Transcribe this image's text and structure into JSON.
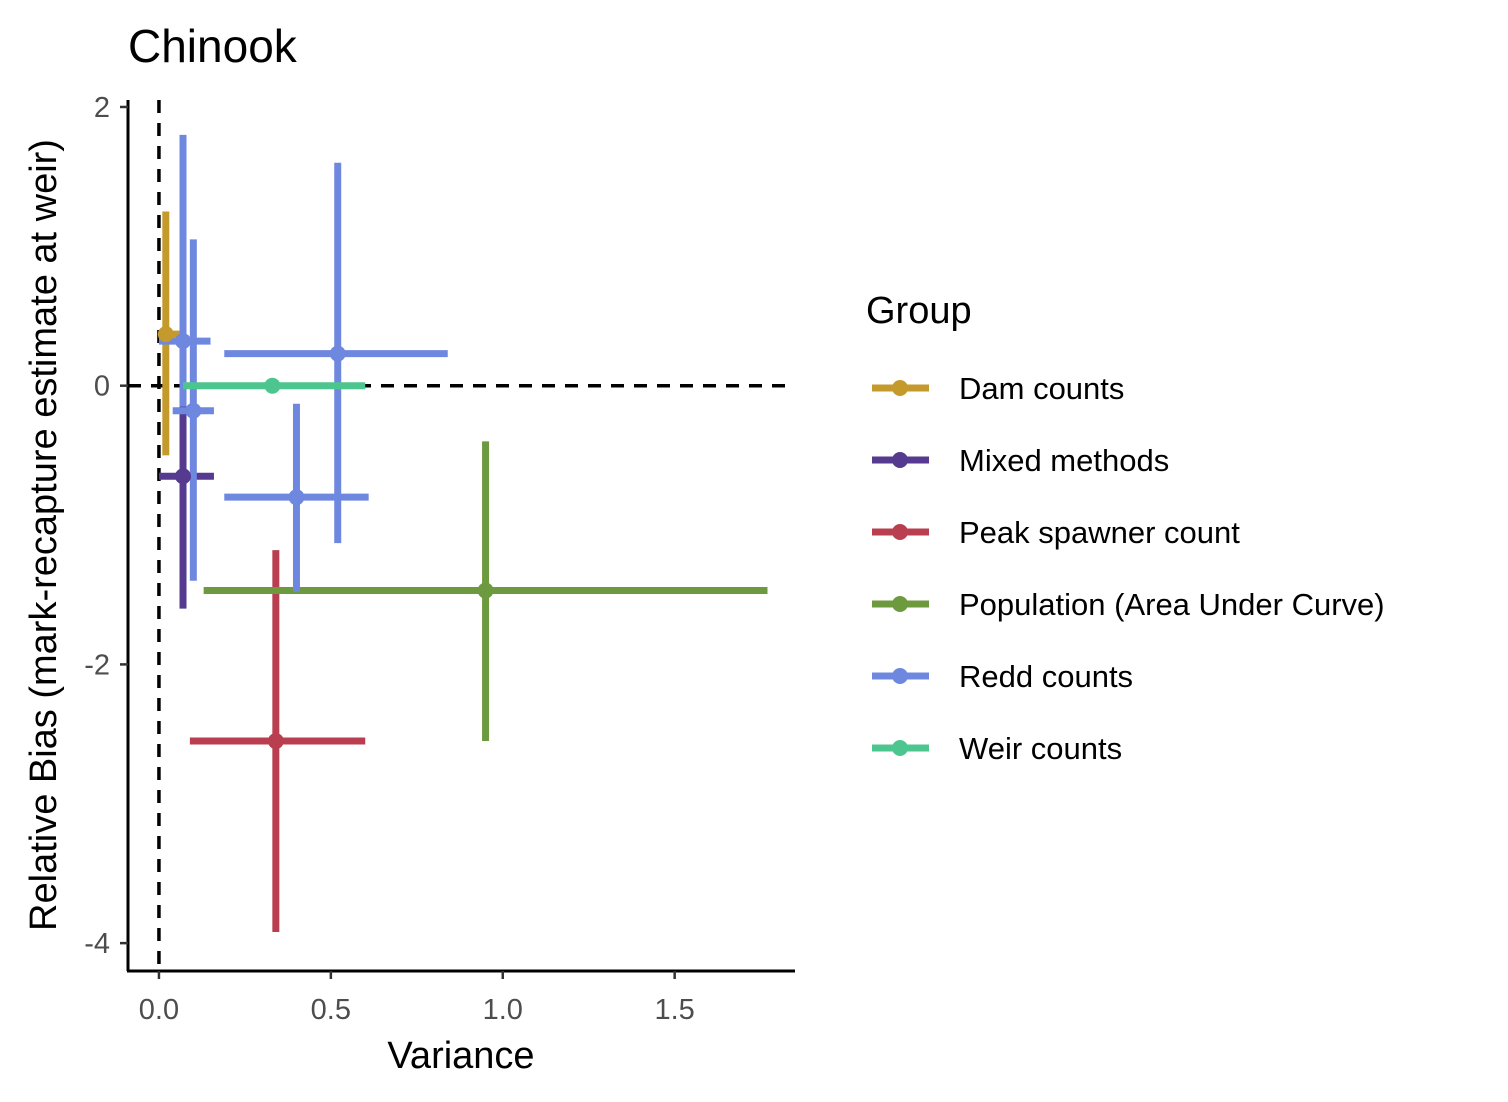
{
  "chart_data": {
    "type": "scatter",
    "title": "Chinook",
    "xlabel": "Variance",
    "ylabel": "Relative Bias (mark-recapture estimate at weir)",
    "xlim": [
      -0.09,
      1.85
    ],
    "ylim": [
      -4.2,
      2.05
    ],
    "x_ticks": [
      {
        "value": 0.0,
        "label": "0.0"
      },
      {
        "value": 0.5,
        "label": "0.5"
      },
      {
        "value": 1.0,
        "label": "1.0"
      },
      {
        "value": 1.5,
        "label": "1.5"
      }
    ],
    "y_ticks": [
      {
        "value": 2,
        "label": "2"
      },
      {
        "value": 0,
        "label": "0"
      },
      {
        "value": -2,
        "label": "-2"
      },
      {
        "value": -4,
        "label": "-4"
      }
    ],
    "reference_lines": {
      "x": 0,
      "y": 0,
      "style": "dashed"
    },
    "grid": false,
    "legend": {
      "title": "Group",
      "placement": "right"
    },
    "series": [
      {
        "name": "Dam counts",
        "color": "#c49a2c",
        "points": [
          {
            "x": 0.02,
            "y": 0.37,
            "xmin": 0.0,
            "xmax": 0.06,
            "ymin": -0.5,
            "ymax": 1.25
          }
        ]
      },
      {
        "name": "Mixed methods",
        "color": "#553a8f",
        "points": [
          {
            "x": 0.07,
            "y": -0.65,
            "xmin": 0.0,
            "xmax": 0.16,
            "ymin": -1.6,
            "ymax": 0.3
          }
        ]
      },
      {
        "name": "Peak spawner count",
        "color": "#b93f50",
        "points": [
          {
            "x": 0.34,
            "y": -2.55,
            "xmin": 0.09,
            "xmax": 0.6,
            "ymin": -3.92,
            "ymax": -1.18
          }
        ]
      },
      {
        "name": "Population (Area Under Curve)",
        "color": "#6e9a3f",
        "points": [
          {
            "x": 0.95,
            "y": -1.47,
            "xmin": 0.13,
            "xmax": 1.77,
            "ymin": -2.55,
            "ymax": -0.4
          }
        ]
      },
      {
        "name": "Redd counts",
        "color": "#6f88df",
        "points": [
          {
            "x": 0.52,
            "y": 0.23,
            "xmin": 0.19,
            "xmax": 0.84,
            "ymin": -1.13,
            "ymax": 1.6
          },
          {
            "x": 0.4,
            "y": -0.8,
            "xmin": 0.19,
            "xmax": 0.61,
            "ymin": -1.48,
            "ymax": -0.13
          },
          {
            "x": 0.07,
            "y": 0.32,
            "xmin": 0.0,
            "xmax": 0.15,
            "ymin": -0.15,
            "ymax": 1.8
          },
          {
            "x": 0.1,
            "y": -0.18,
            "xmin": 0.04,
            "xmax": 0.16,
            "ymin": -1.4,
            "ymax": 1.05
          }
        ]
      },
      {
        "name": "Weir counts",
        "color": "#4dc58e",
        "points": [
          {
            "x": 0.33,
            "y": 0.0,
            "xmin": 0.07,
            "xmax": 0.6,
            "ymin": 0.0,
            "ymax": 0.0
          }
        ]
      }
    ]
  }
}
